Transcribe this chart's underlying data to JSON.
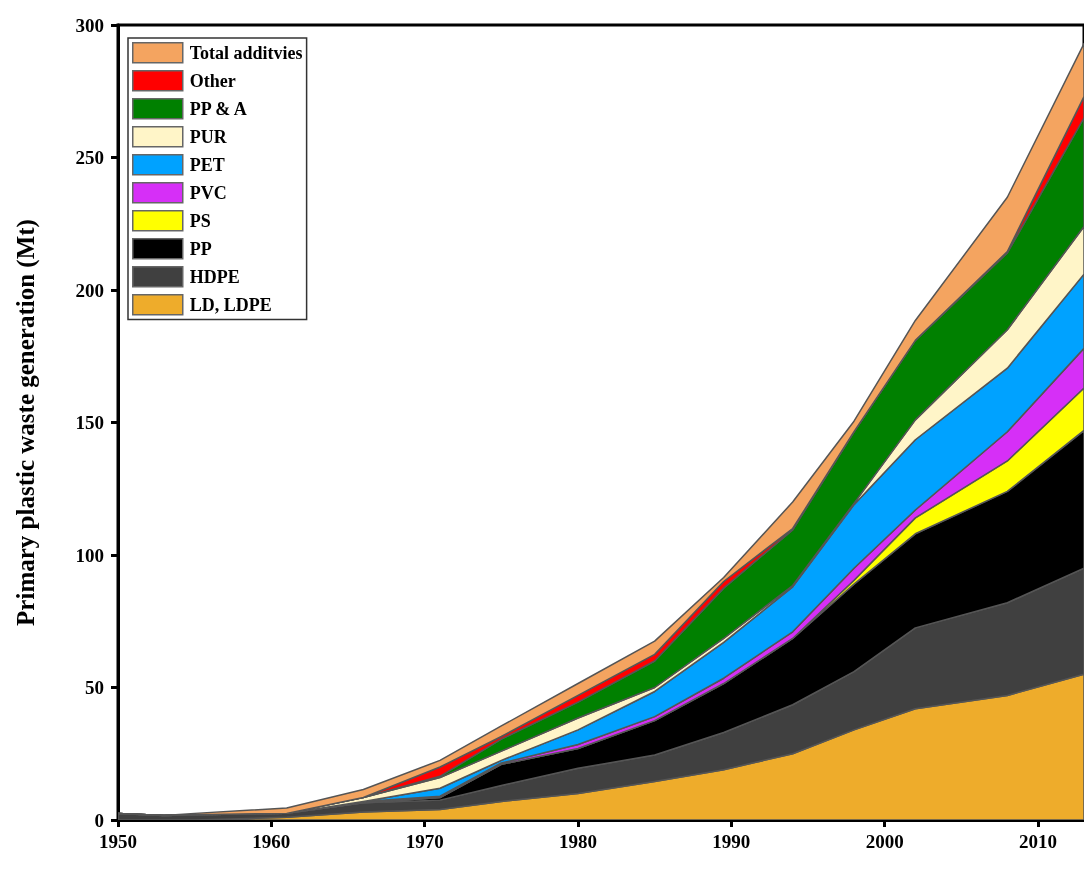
{
  "chart_data": {
    "type": "area",
    "stacked": true,
    "ylabel": "Primary plastic waste generation (Mt)",
    "x": [
      1950,
      1953,
      1955,
      1961,
      1966,
      1971,
      1975,
      1980,
      1985,
      1989.5,
      1994,
      1998,
      2002,
      2008,
      2013
    ],
    "xlim": [
      1950,
      2013
    ],
    "xticks": [
      1950,
      1960,
      1970,
      1980,
      1990,
      2000,
      2010
    ],
    "ylim": [
      0,
      300
    ],
    "yticks": [
      0,
      50,
      100,
      150,
      200,
      250,
      300
    ],
    "legend": "top left",
    "grid": false,
    "line_style": "solid",
    "series": [
      {
        "name": "LD, LDPE",
        "color": "#eeac2b",
        "values": [
          0,
          0,
          0,
          1,
          3,
          4,
          7,
          10,
          14.5,
          19,
          25,
          34,
          42,
          47,
          55
        ]
      },
      {
        "name": "HDPE",
        "color": "#404040",
        "values": [
          2.5,
          1.7,
          2,
          1.5,
          3.5,
          3.5,
          6,
          9.5,
          10,
          14,
          18.5,
          22,
          30.5,
          35,
          40
        ]
      },
      {
        "name": "PP",
        "color": "#000000",
        "values": [
          0,
          0,
          0,
          0,
          0,
          1,
          8,
          7.5,
          13,
          18.5,
          25,
          33,
          35.5,
          42,
          52
        ]
      },
      {
        "name": "PS",
        "color": "#ffff00",
        "values": [
          0,
          0,
          0,
          0,
          0,
          0,
          0,
          0,
          0,
          0,
          0,
          1.5,
          6,
          11.5,
          16
        ]
      },
      {
        "name": "PVC",
        "color": "#d62ff7",
        "values": [
          0,
          0,
          0,
          0,
          0.5,
          0.5,
          0.5,
          1.5,
          1.5,
          2,
          2.5,
          4.5,
          3,
          11,
          15
        ]
      },
      {
        "name": "PET",
        "color": "#00a2ff",
        "values": [
          0,
          0,
          0,
          0,
          0,
          3,
          1,
          5.5,
          9.5,
          13.5,
          17,
          24,
          26.5,
          24,
          28
        ]
      },
      {
        "name": "PUR",
        "color": "#fff5c8",
        "values": [
          0,
          0,
          0,
          0,
          1.5,
          4,
          3.5,
          4.5,
          1.5,
          1.5,
          0.5,
          0.5,
          7.5,
          14.5,
          18
        ]
      },
      {
        "name": "PP & A",
        "color": "#008000",
        "values": [
          0,
          0,
          0,
          0,
          0,
          0.5,
          4.5,
          6,
          10,
          19,
          21,
          27,
          30,
          29,
          41
        ]
      },
      {
        "name": "Other",
        "color": "#ff0000",
        "values": [
          0,
          0,
          0,
          0,
          0,
          3.5,
          1,
          2.5,
          2.5,
          2.5,
          0.5,
          0,
          0,
          0.5,
          8
        ]
      },
      {
        "name": "Total additvies",
        "color": "#f4a460",
        "values": [
          0,
          0,
          0.5,
          2,
          3,
          2.5,
          4,
          4.5,
          5,
          1.5,
          10,
          4,
          7.5,
          20.5,
          20
        ]
      }
    ]
  }
}
